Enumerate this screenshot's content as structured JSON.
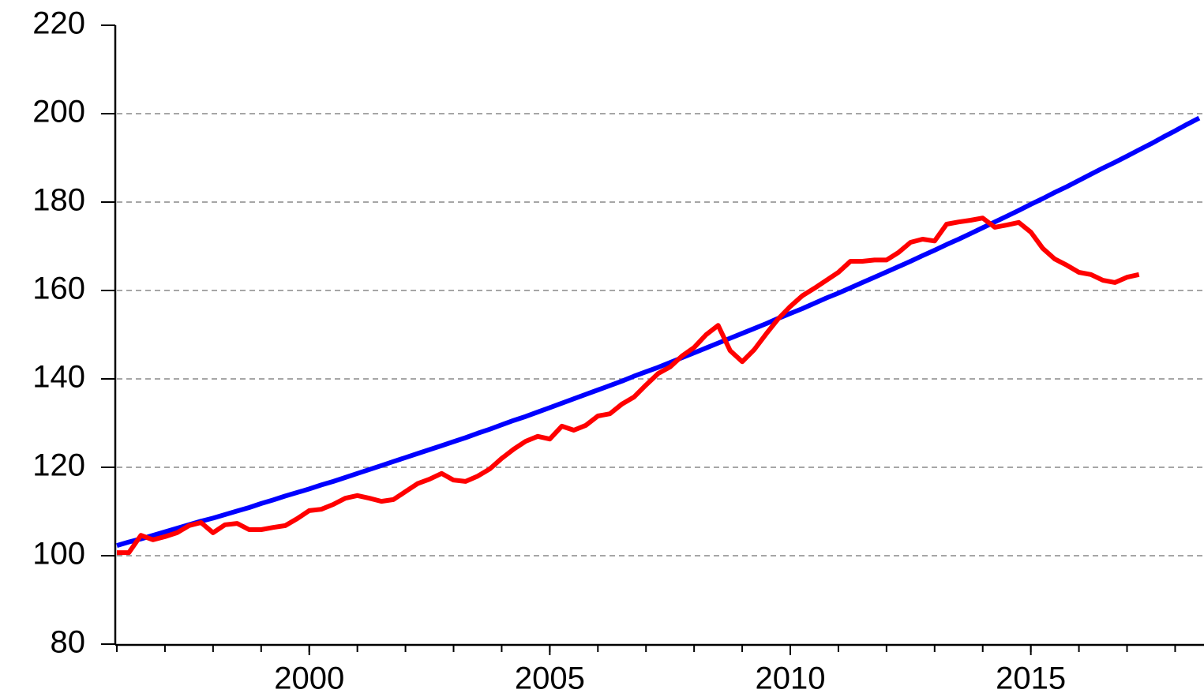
{
  "chart_data": {
    "type": "line",
    "xlim": [
      1996,
      2018.6
    ],
    "xticks": [
      2000,
      2005,
      2010,
      2015
    ],
    "xminorticks": [
      1996,
      1997,
      1998,
      1999,
      2000,
      2001,
      2002,
      2003,
      2004,
      2005,
      2006,
      2007,
      2008,
      2009,
      2010,
      2011,
      2012,
      2013,
      2014,
      2015,
      2016,
      2017,
      2018
    ],
    "ylim": [
      80,
      220
    ],
    "yticks": [
      80,
      100,
      120,
      140,
      160,
      180,
      200,
      220
    ],
    "grid": true,
    "series": [
      {
        "color": "#0000ff",
        "x": [
          1996,
          1996.25,
          1996.5,
          1996.75,
          1997,
          1997.25,
          1997.5,
          1997.75,
          1998,
          1998.25,
          1998.5,
          1998.75,
          1999,
          1999.25,
          1999.5,
          1999.75,
          2000,
          2000.25,
          2000.5,
          2000.75,
          2001,
          2001.25,
          2001.5,
          2001.75,
          2002,
          2002.25,
          2002.5,
          2002.75,
          2003,
          2003.25,
          2003.5,
          2003.75,
          2004,
          2004.25,
          2004.5,
          2004.75,
          2005,
          2005.25,
          2005.5,
          2005.75,
          2006,
          2006.25,
          2006.5,
          2006.75,
          2007,
          2007.25,
          2007.5,
          2007.75,
          2008,
          2008.25,
          2008.5,
          2008.75,
          2009,
          2009.25,
          2009.5,
          2009.75,
          2010,
          2010.25,
          2010.5,
          2010.75,
          2011,
          2011.25,
          2011.5,
          2011.75,
          2012,
          2012.25,
          2012.5,
          2012.75,
          2013,
          2013.25,
          2013.5,
          2013.75,
          2014,
          2014.25,
          2014.5,
          2014.75,
          2015,
          2015.25,
          2015.5,
          2015.75,
          2016,
          2016.25,
          2016.5,
          2016.75,
          2017,
          2017.25,
          2017.5,
          2017.75,
          2018,
          2018.25,
          2018.5
        ],
        "values": [
          102.3,
          103.1,
          103.8,
          104.6,
          105.4,
          106.2,
          107.0,
          107.8,
          108.5,
          109.3,
          110.1,
          110.9,
          111.8,
          112.6,
          113.5,
          114.3,
          115.1,
          116.0,
          116.8,
          117.7,
          118.6,
          119.5,
          120.4,
          121.3,
          122.2,
          123.1,
          124.0,
          124.9,
          125.8,
          126.7,
          127.7,
          128.6,
          129.6,
          130.6,
          131.5,
          132.5,
          133.5,
          134.5,
          135.5,
          136.5,
          137.5,
          138.5,
          139.5,
          140.6,
          141.6,
          142.6,
          143.7,
          144.8,
          145.9,
          147.0,
          148.1,
          149.2,
          150.3,
          151.4,
          152.5,
          153.7,
          154.8,
          155.9,
          157.1,
          158.3,
          159.4,
          160.6,
          161.8,
          163.0,
          164.2,
          165.4,
          166.6,
          167.9,
          169.1,
          170.4,
          171.6,
          172.9,
          174.2,
          175.5,
          176.8,
          178.1,
          179.5,
          180.8,
          182.2,
          183.5,
          184.9,
          186.3,
          187.7,
          189.0,
          190.4,
          191.8,
          193.2,
          194.7,
          196.1,
          197.6,
          199.0
        ]
      },
      {
        "color": "#ff0000",
        "x": [
          1996,
          1996.25,
          1996.5,
          1996.75,
          1997,
          1997.25,
          1997.5,
          1997.75,
          1998,
          1998.25,
          1998.5,
          1998.75,
          1999,
          1999.25,
          1999.5,
          1999.75,
          2000,
          2000.25,
          2000.5,
          2000.75,
          2001,
          2001.25,
          2001.5,
          2001.75,
          2002,
          2002.25,
          2002.5,
          2002.75,
          2003,
          2003.25,
          2003.5,
          2003.75,
          2004,
          2004.25,
          2004.5,
          2004.75,
          2005,
          2005.25,
          2005.5,
          2005.75,
          2006,
          2006.25,
          2006.5,
          2006.75,
          2007,
          2007.25,
          2007.5,
          2007.75,
          2008,
          2008.25,
          2008.5,
          2008.75,
          2009,
          2009.25,
          2009.5,
          2009.75,
          2010,
          2010.25,
          2010.5,
          2010.75,
          2011,
          2011.25,
          2011.5,
          2011.75,
          2012,
          2012.25,
          2012.5,
          2012.75,
          2013,
          2013.25,
          2013.5,
          2013.75,
          2014,
          2014.25,
          2014.5,
          2014.75,
          2015,
          2015.25,
          2015.5,
          2015.75,
          2016,
          2016.25,
          2016.5,
          2016.75,
          2017,
          2017.25
        ],
        "values": [
          100.7,
          100.7,
          104.6,
          103.6,
          104.3,
          105.2,
          106.8,
          107.5,
          105.2,
          107.0,
          107.3,
          105.9,
          105.9,
          106.4,
          106.8,
          108.4,
          110.2,
          110.5,
          111.6,
          113.0,
          113.6,
          113.0,
          112.3,
          112.7,
          114.5,
          116.3,
          117.3,
          118.6,
          117.1,
          116.8,
          118.0,
          119.6,
          122.0,
          124.1,
          125.9,
          127.0,
          126.4,
          129.3,
          128.4,
          129.5,
          131.6,
          132.1,
          134.3,
          135.9,
          138.6,
          141.2,
          142.7,
          145.2,
          147.1,
          150.0,
          152.1,
          146.4,
          143.9,
          146.6,
          150.2,
          153.6,
          156.4,
          158.8,
          160.5,
          162.3,
          164.1,
          166.6,
          166.6,
          166.9,
          166.9,
          168.6,
          170.9,
          171.6,
          171.2,
          175.0,
          175.5,
          175.9,
          176.4,
          174.3,
          174.8,
          175.4,
          173.2,
          169.5,
          167.1,
          165.7,
          164.1,
          163.6,
          162.3,
          161.8,
          163.0,
          163.6
        ]
      }
    ]
  }
}
